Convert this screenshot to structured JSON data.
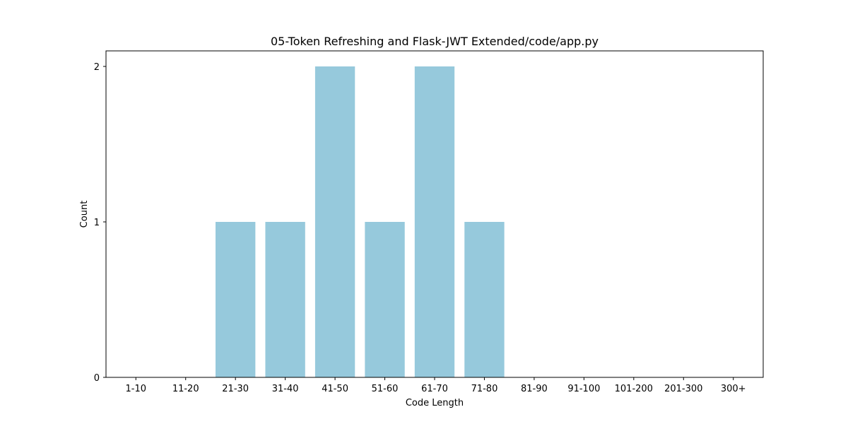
{
  "chart_data": {
    "type": "bar",
    "title": "05-Token Refreshing and Flask-JWT Extended/code/app.py",
    "xlabel": "Code Length",
    "ylabel": "Count",
    "categories": [
      "1-10",
      "11-20",
      "21-30",
      "31-40",
      "41-50",
      "51-60",
      "61-70",
      "71-80",
      "81-90",
      "91-100",
      "101-200",
      "201-300",
      "300+"
    ],
    "values": [
      0,
      0,
      1,
      1,
      2,
      1,
      2,
      1,
      0,
      0,
      0,
      0,
      0
    ],
    "yticks": [
      0,
      1,
      2
    ],
    "ylim": [
      0,
      2.1
    ],
    "grid": false,
    "bar_color": "#96c9dc"
  }
}
